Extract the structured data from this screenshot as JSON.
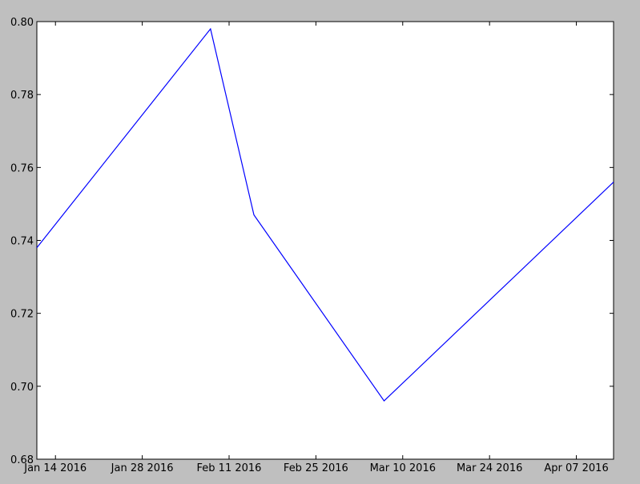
{
  "window": {
    "background": "#bfbfbf"
  },
  "chart_data": {
    "type": "line",
    "title": "",
    "xlabel": "",
    "ylabel": "",
    "x_axis_type": "date",
    "xlim": [
      "2016-01-11",
      "2016-04-13"
    ],
    "ylim": [
      0.68,
      0.8
    ],
    "grid": false,
    "x_ticks": [
      {
        "value": "2016-01-14",
        "label": "Jan 14 2016"
      },
      {
        "value": "2016-01-28",
        "label": "Jan 28 2016"
      },
      {
        "value": "2016-02-11",
        "label": "Feb 11 2016"
      },
      {
        "value": "2016-02-25",
        "label": "Feb 25 2016"
      },
      {
        "value": "2016-03-10",
        "label": "Mar 10 2016"
      },
      {
        "value": "2016-03-24",
        "label": "Mar 24 2016"
      },
      {
        "value": "2016-04-07",
        "label": "Apr 07 2016"
      }
    ],
    "y_ticks": [
      {
        "value": 0.68,
        "label": "0.68"
      },
      {
        "value": 0.7,
        "label": "0.70"
      },
      {
        "value": 0.72,
        "label": "0.72"
      },
      {
        "value": 0.74,
        "label": "0.74"
      },
      {
        "value": 0.76,
        "label": "0.76"
      },
      {
        "value": 0.78,
        "label": "0.78"
      },
      {
        "value": 0.8,
        "label": "0.80"
      }
    ],
    "series": [
      {
        "color": "#0000ff",
        "x": [
          "2016-01-11",
          "2016-02-08",
          "2016-02-15",
          "2016-03-07",
          "2016-04-13"
        ],
        "y": [
          0.738,
          0.798,
          0.747,
          0.696,
          0.756
        ]
      }
    ]
  }
}
